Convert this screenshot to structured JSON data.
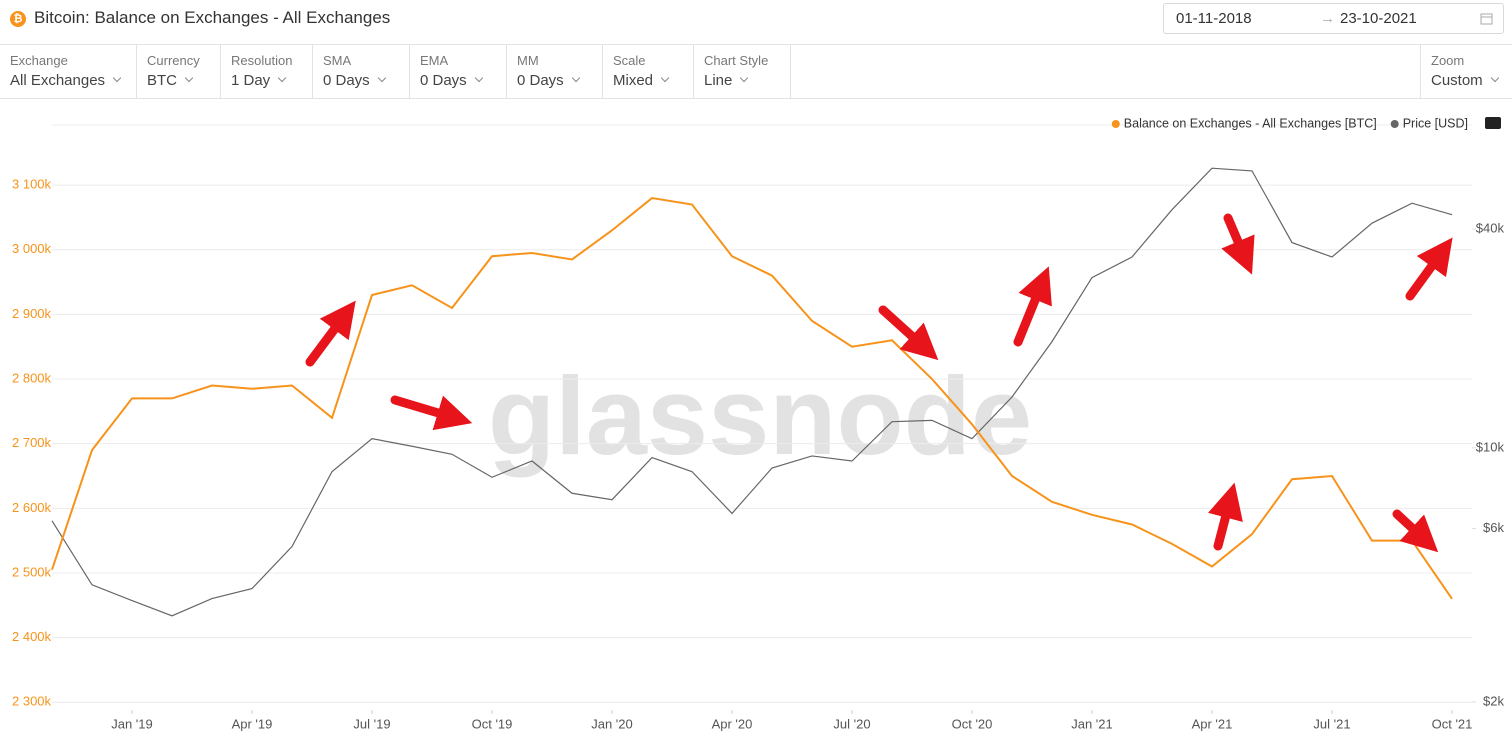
{
  "header": {
    "title": "Bitcoin: Balance on Exchanges - All Exchanges",
    "date_from": "01-11-2018",
    "date_to": "23-10-2021"
  },
  "toolbar": [
    {
      "label": "Exchange",
      "value": "All Exchanges"
    },
    {
      "label": "Currency",
      "value": "BTC"
    },
    {
      "label": "Resolution",
      "value": "1 Day"
    },
    {
      "label": "SMA",
      "value": "0 Days"
    },
    {
      "label": "EMA",
      "value": "0 Days"
    },
    {
      "label": "MM",
      "value": "0 Days"
    },
    {
      "label": "Scale",
      "value": "Mixed"
    },
    {
      "label": "Chart Style",
      "value": "Line"
    }
  ],
  "zoom": {
    "label": "Zoom",
    "value": "Custom"
  },
  "chart_data": {
    "type": "line",
    "watermark": "glassnode",
    "x": [
      "2018-11",
      "2018-12",
      "2019-01",
      "2019-02",
      "2019-03",
      "2019-04",
      "2019-05",
      "2019-06",
      "2019-07",
      "2019-08",
      "2019-09",
      "2019-10",
      "2019-11",
      "2019-12",
      "2020-01",
      "2020-02",
      "2020-03",
      "2020-04",
      "2020-05",
      "2020-06",
      "2020-07",
      "2020-08",
      "2020-09",
      "2020-10",
      "2020-11",
      "2020-12",
      "2021-01",
      "2021-02",
      "2021-03",
      "2021-04",
      "2021-05",
      "2021-06",
      "2021-07",
      "2021-08",
      "2021-09",
      "2021-10"
    ],
    "xticks": [
      {
        "value": "2019-01",
        "label": "Jan '19"
      },
      {
        "value": "2019-04",
        "label": "Apr '19"
      },
      {
        "value": "2019-07",
        "label": "Jul '19"
      },
      {
        "value": "2019-10",
        "label": "Oct '19"
      },
      {
        "value": "2020-01",
        "label": "Jan '20"
      },
      {
        "value": "2020-04",
        "label": "Apr '20"
      },
      {
        "value": "2020-07",
        "label": "Jul '20"
      },
      {
        "value": "2020-10",
        "label": "Oct '20"
      },
      {
        "value": "2021-01",
        "label": "Jan '21"
      },
      {
        "value": "2021-04",
        "label": "Apr '21"
      },
      {
        "value": "2021-07",
        "label": "Jul '21"
      },
      {
        "value": "2021-10",
        "label": "Oct '21"
      }
    ],
    "ylim": [
      2288000,
      3193000
    ],
    "yticks": [
      {
        "value": 2300000,
        "label": "2 300k"
      },
      {
        "value": 2400000,
        "label": "2 400k"
      },
      {
        "value": 2500000,
        "label": "2 500k"
      },
      {
        "value": 2600000,
        "label": "2 600k"
      },
      {
        "value": 2700000,
        "label": "2 700k"
      },
      {
        "value": 2800000,
        "label": "2 800k"
      },
      {
        "value": 2900000,
        "label": "2 900k"
      },
      {
        "value": 3000000,
        "label": "3 000k"
      },
      {
        "value": 3100000,
        "label": "3 100k"
      }
    ],
    "y2lim": [
      1900,
      77300
    ],
    "y2scale": "log",
    "y2ticks": [
      {
        "value": 2000,
        "label": "$2k"
      },
      {
        "value": 6000,
        "label": "$6k"
      },
      {
        "value": 10000,
        "label": "$10k"
      },
      {
        "value": 40000,
        "label": "$40k"
      }
    ],
    "grid": true,
    "series": [
      {
        "name": "Balance on Exchanges - All Exchanges [BTC]",
        "color": "#f7931a",
        "values": [
          2505000,
          2690000,
          2770000,
          2770000,
          2790000,
          2785000,
          2790000,
          2740000,
          2930000,
          2945000,
          2910000,
          2990000,
          2995000,
          2985000,
          3030000,
          3080000,
          3070000,
          2990000,
          2960000,
          2890000,
          2850000,
          2860000,
          2800000,
          2730000,
          2650000,
          2610000,
          2590000,
          2575000,
          2545000,
          2510000,
          2560000,
          2645000,
          2650000,
          2550000,
          2550000,
          2460000
        ]
      },
      {
        "name": "Price [USD]",
        "color": "#666666",
        "axis": "y2",
        "values": [
          6300,
          4200,
          3800,
          3450,
          3850,
          4100,
          5350,
          8600,
          10600,
          10100,
          9600,
          8300,
          9200,
          7500,
          7200,
          9400,
          8600,
          6600,
          8800,
          9500,
          9200,
          11800,
          11900,
          10600,
          13800,
          19600,
          29400,
          33500,
          45200,
          58800,
          57800,
          36700,
          33500,
          41500,
          47100,
          43800
        ]
      }
    ]
  }
}
